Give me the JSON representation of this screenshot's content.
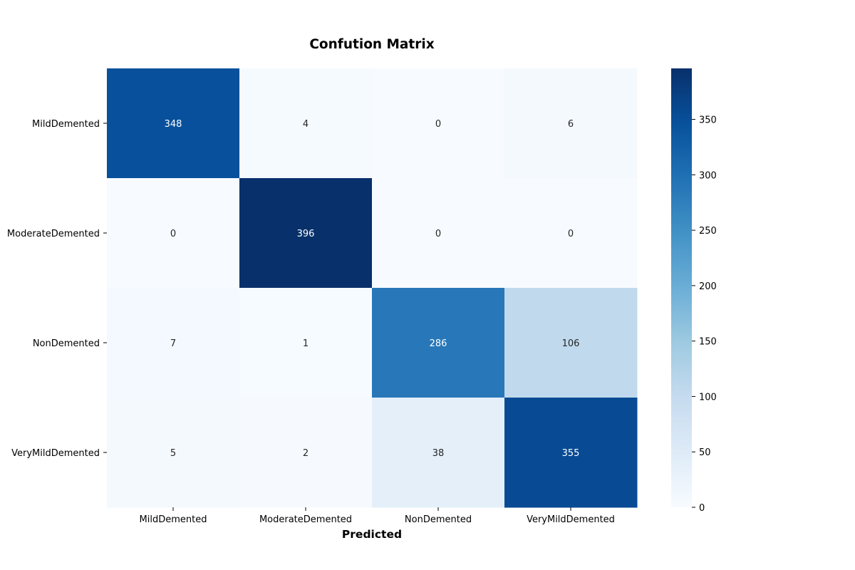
{
  "chart_data": {
    "type": "heatmap",
    "title": "Confution Matrix",
    "xlabel": "Predicted",
    "ylabel": "",
    "x_categories": [
      "MildDemented",
      "ModerateDemented",
      "NonDemented",
      "VeryMildDemented"
    ],
    "y_categories": [
      "MildDemented",
      "ModerateDemented",
      "NonDemented",
      "VeryMildDemented"
    ],
    "values": [
      [
        348,
        4,
        0,
        6
      ],
      [
        0,
        396,
        0,
        0
      ],
      [
        7,
        1,
        286,
        106
      ],
      [
        5,
        2,
        38,
        355
      ]
    ],
    "colorbar": {
      "range": [
        0,
        396
      ],
      "ticks": [
        0,
        50,
        100,
        150,
        200,
        250,
        300,
        350
      ],
      "colormap": "Blues"
    },
    "grid": false
  }
}
